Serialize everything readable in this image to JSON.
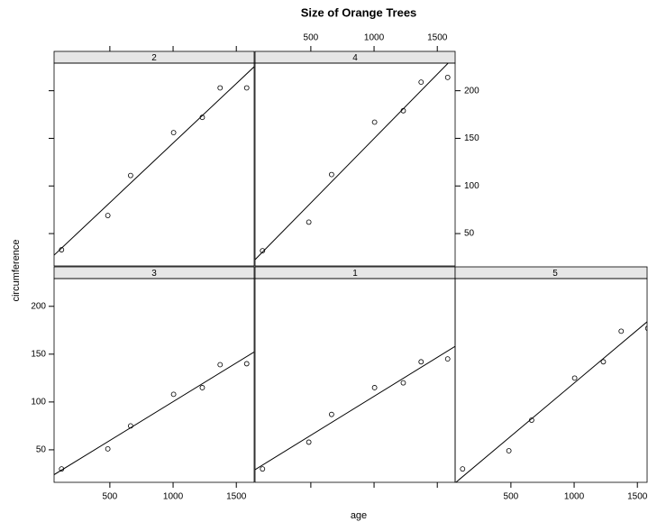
{
  "chart_data": {
    "type": "scatter",
    "title": "Size of Orange Trees",
    "x_label": "age",
    "y_label": "circumference",
    "x": [
      118,
      484,
      664,
      1004,
      1231,
      1372,
      1582
    ],
    "series": [
      {
        "name": "3",
        "color": "#000000",
        "values": [
          30,
          51,
          75,
          108,
          115,
          139,
          140
        ]
      },
      {
        "name": "1",
        "color": "#000000",
        "values": [
          30,
          58,
          87,
          115,
          120,
          142,
          145
        ]
      },
      {
        "name": "5",
        "color": "#000000",
        "values": [
          30,
          49,
          81,
          125,
          142,
          174,
          177
        ]
      },
      {
        "name": "2",
        "color": "#000000",
        "values": [
          33,
          69,
          111,
          156,
          172,
          203,
          203
        ]
      },
      {
        "name": "4",
        "color": "#000000",
        "values": [
          32,
          62,
          112,
          167,
          179,
          209,
          214
        ]
      }
    ],
    "xlim": [
      59,
      1641
    ],
    "xticks": [
      500,
      1000,
      1500
    ],
    "ylim": [
      16,
      229
    ],
    "yticks": [
      50,
      100,
      150,
      200
    ],
    "regression_line": true,
    "strip_color": "#e6e6e6"
  }
}
